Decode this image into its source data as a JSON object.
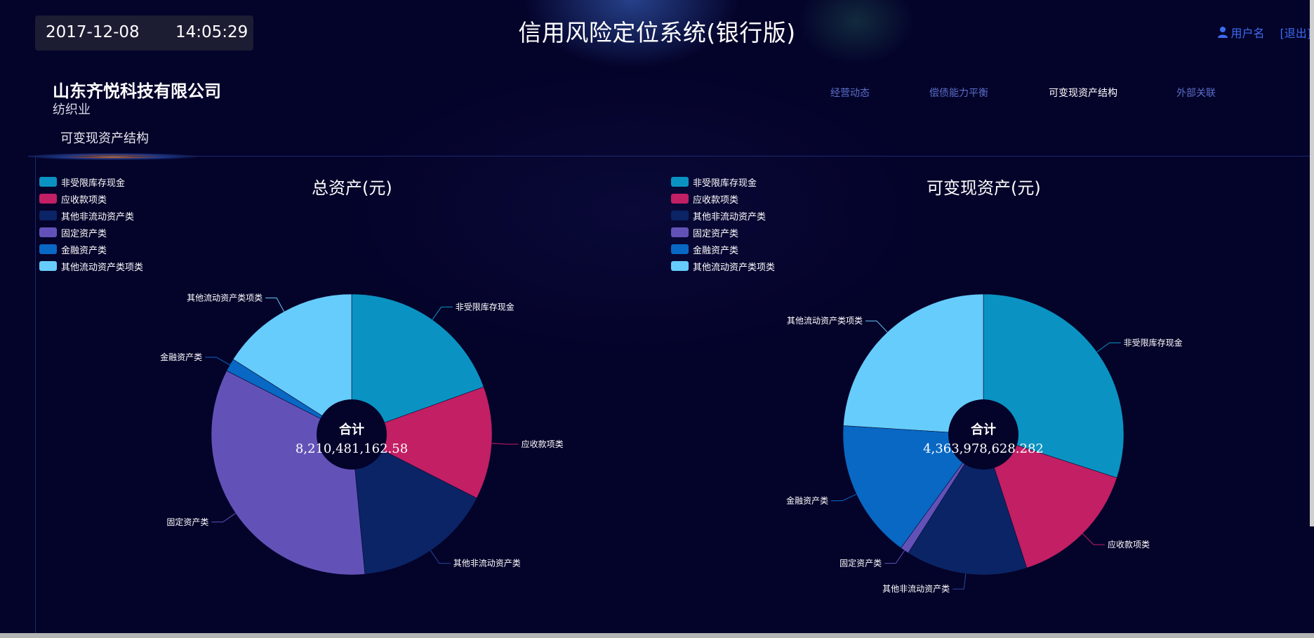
{
  "header": {
    "date": "2017-12-08",
    "time": "14:05:29",
    "app_title": "信用风险定位系统(银行版)",
    "user_name": "用户名",
    "logout": "[退出]"
  },
  "company": {
    "name": "山东齐悦科技有限公司",
    "industry": "纺织业"
  },
  "section_title": "可变现资产结构",
  "nav": [
    {
      "label": "经营动态",
      "active": false
    },
    {
      "label": "偿债能力平衡",
      "active": false
    },
    {
      "label": "可变现资产结构",
      "active": true
    },
    {
      "label": "外部关联",
      "active": false
    }
  ],
  "colors": [
    "#0a93c2",
    "#c21f64",
    "#0a2466",
    "#6252b8",
    "#0868c4",
    "#66ccfb"
  ],
  "chart_data": [
    {
      "type": "pie",
      "title": "总资产(元)",
      "center_label": "合计",
      "total": "8,210,481,162.58",
      "categories": [
        "非受限库存现金",
        "应收款项类",
        "其他非流动资产类",
        "固定资产类",
        "金融资产类",
        "其他流动资产类项类"
      ],
      "values": [
        19.5,
        13.0,
        16.0,
        34.0,
        1.5,
        16.0
      ],
      "legend": "top-left"
    },
    {
      "type": "pie",
      "title": "可变现资产(元)",
      "center_label": "合计",
      "total": "4,363,978,628.282",
      "categories": [
        "非受限库存现金",
        "应收款项类",
        "其他非流动资产类",
        "固定资产类",
        "金融资产类",
        "其他流动资产类项类"
      ],
      "values": [
        30.0,
        15.0,
        14.0,
        1.0,
        16.0,
        24.0
      ],
      "legend": "top-left"
    }
  ]
}
